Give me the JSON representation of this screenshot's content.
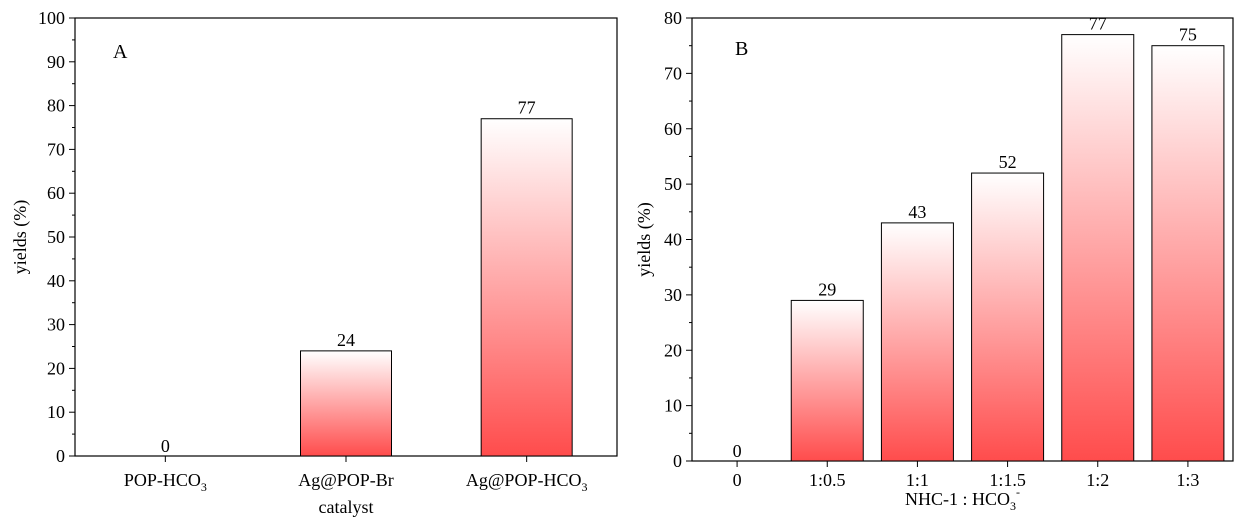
{
  "chart_data": [
    {
      "type": "bar",
      "panel_label": "A",
      "categories": [
        "POP-HCO",
        "Ag@POP-Br",
        "Ag@POP-HCO"
      ],
      "category_subscripts": [
        "3",
        "",
        "3"
      ],
      "values": [
        0,
        24,
        77
      ],
      "data_labels": [
        "0",
        "24",
        "77"
      ],
      "xlabel": "catalyst",
      "ylabel": "yields (%)",
      "ylim": [
        0,
        100
      ],
      "yticks": [
        "0",
        "10",
        "20",
        "30",
        "40",
        "50",
        "60",
        "70",
        "80",
        "90",
        "100"
      ],
      "grid": false,
      "bar_gradient": {
        "top": "#ffffff",
        "bottom": "#ff4c4c"
      }
    },
    {
      "type": "bar",
      "panel_label": "B",
      "categories": [
        "0",
        "1:0.5",
        "1:1",
        "1:1.5",
        "1:2",
        "1:3"
      ],
      "values": [
        0,
        29,
        43,
        52,
        77,
        75
      ],
      "data_labels": [
        "0",
        "29",
        "43",
        "52",
        "77",
        "75"
      ],
      "xlabel": "NHC-1 : HCO",
      "xlabel_sub": "3",
      "xlabel_sup": "-",
      "ylabel": "yields (%)",
      "ylim": [
        0,
        80
      ],
      "yticks": [
        "0",
        "10",
        "20",
        "30",
        "40",
        "50",
        "60",
        "70",
        "80"
      ],
      "grid": false,
      "bar_gradient": {
        "top": "#ffffff",
        "bottom": "#ff4c4c"
      }
    }
  ]
}
